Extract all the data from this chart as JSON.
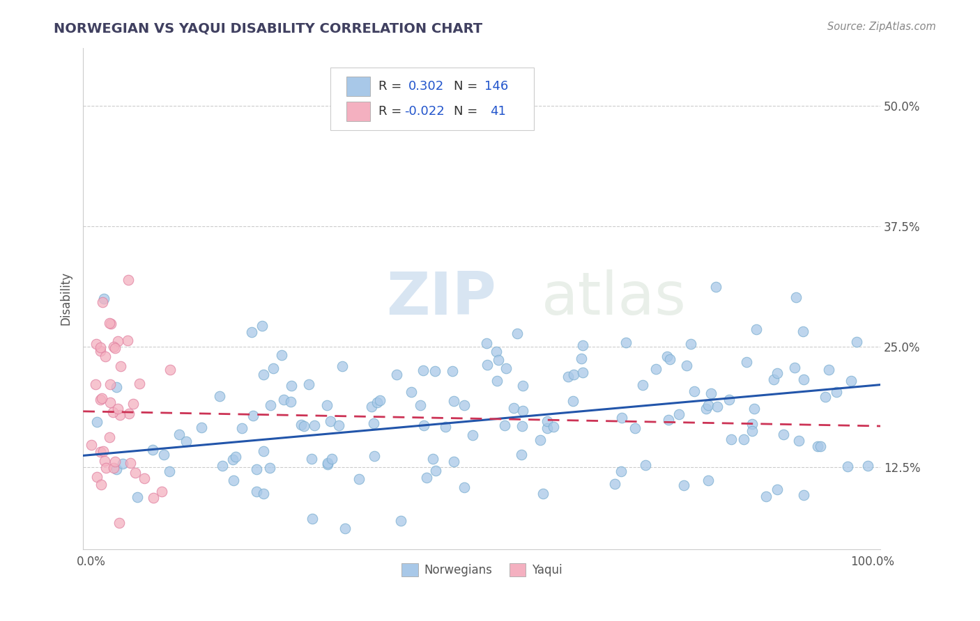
{
  "title": "NORWEGIAN VS YAQUI DISABILITY CORRELATION CHART",
  "source": "Source: ZipAtlas.com",
  "ylabel": "Disability",
  "xlim": [
    -0.01,
    1.01
  ],
  "ylim": [
    0.04,
    0.56
  ],
  "yticks": [
    0.125,
    0.25,
    0.375,
    0.5
  ],
  "ytick_labels": [
    "12.5%",
    "25.0%",
    "37.5%",
    "50.0%"
  ],
  "xtick_labels": [
    "0.0%",
    "100.0%"
  ],
  "norwegian_R": 0.302,
  "norwegian_N": 146,
  "yaqui_R": -0.022,
  "yaqui_N": 41,
  "norwegian_color": "#A8C8E8",
  "norwegian_edge": "#7AAED0",
  "yaqui_color": "#F4B0C0",
  "yaqui_edge": "#E080A0",
  "norwegian_line_color": "#2255AA",
  "yaqui_line_color": "#CC3355",
  "yaqui_line_dash": [
    6,
    4
  ],
  "background_color": "#FFFFFF",
  "watermark_text": "ZIPatlas",
  "watermark_color": "#D8E8F4",
  "legend_label_norwegian": "Norwegians",
  "legend_label_yaqui": "Yaqui",
  "title_color": "#404060",
  "source_color": "#888888",
  "grid_color": "#CCCCCC",
  "axis_color": "#CCCCCC",
  "tick_label_color": "#555555",
  "legend_R_color": "#2255CC",
  "legend_text_color": "#333333"
}
